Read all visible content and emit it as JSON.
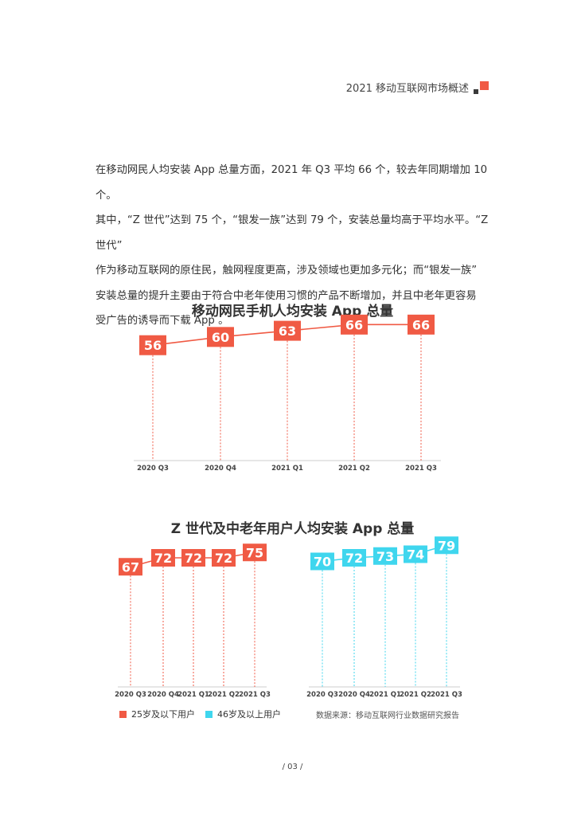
{
  "header": {
    "title": "2021 移动互联网市场概述"
  },
  "body_paragraph": [
    "在移动网民人均安装 App 总量方面，2021 年 Q3 平均 66 个，较去年同期增加 10 个。",
    "其中，“Z 世代”达到 75 个，“银发一族”达到 79 个，安装总量均高于平均水平。“Z 世代”",
    "作为移动互联网的原住民，触网程度更高，涉及领域也更加多元化；而“银发一族”",
    "安装总量的提升主要由于符合中老年使用习惯的产品不断增加，并且中老年更容易",
    "受广告的诱导而下载 App 。"
  ],
  "chart1_title": "移动网民手机人均安装 App 总量",
  "chart2_title": "Z 世代及中老年用户人均安装 App 总量",
  "colors": {
    "red": "#f05a44",
    "cyan": "#3fd6ee",
    "axis": "#cccccc"
  },
  "chart_data": [
    {
      "type": "line",
      "title": "移动网民手机人均安装 App 总量",
      "categories": [
        "2020 Q3",
        "2020 Q4",
        "2021 Q1",
        "2021 Q2",
        "2021 Q3"
      ],
      "series": [
        {
          "values": [
            56,
            60,
            63,
            66,
            66
          ],
          "color": "#f05a44"
        }
      ],
      "ylim": [
        0,
        70
      ]
    },
    {
      "type": "line",
      "title": "Z 世代及中老年用户人均安装 App 总量",
      "categories": [
        "2020 Q3",
        "2020 Q4",
        "2021 Q1",
        "2021 Q2",
        "2021 Q3"
      ],
      "series": [
        {
          "name": "25岁及以下用户",
          "values": [
            67,
            72,
            72,
            72,
            75
          ],
          "color": "#f05a44"
        }
      ],
      "ylim": [
        0,
        80
      ]
    },
    {
      "type": "line",
      "title": "Z 世代及中老年用户人均安装 App 总量",
      "categories": [
        "2020 Q3",
        "2020 Q4",
        "2021 Q1",
        "2021 Q2",
        "2021 Q3"
      ],
      "series": [
        {
          "name": "46岁及以上用户",
          "values": [
            70,
            72,
            73,
            74,
            79
          ],
          "color": "#3fd6ee"
        }
      ],
      "ylim": [
        0,
        80
      ]
    }
  ],
  "legend": {
    "red_label": "25岁及以下用户",
    "cyan_label": "46岁及以上用户"
  },
  "source": "数据来源：移动互联网行业数据研究报告",
  "page_number": "/ 03 /"
}
